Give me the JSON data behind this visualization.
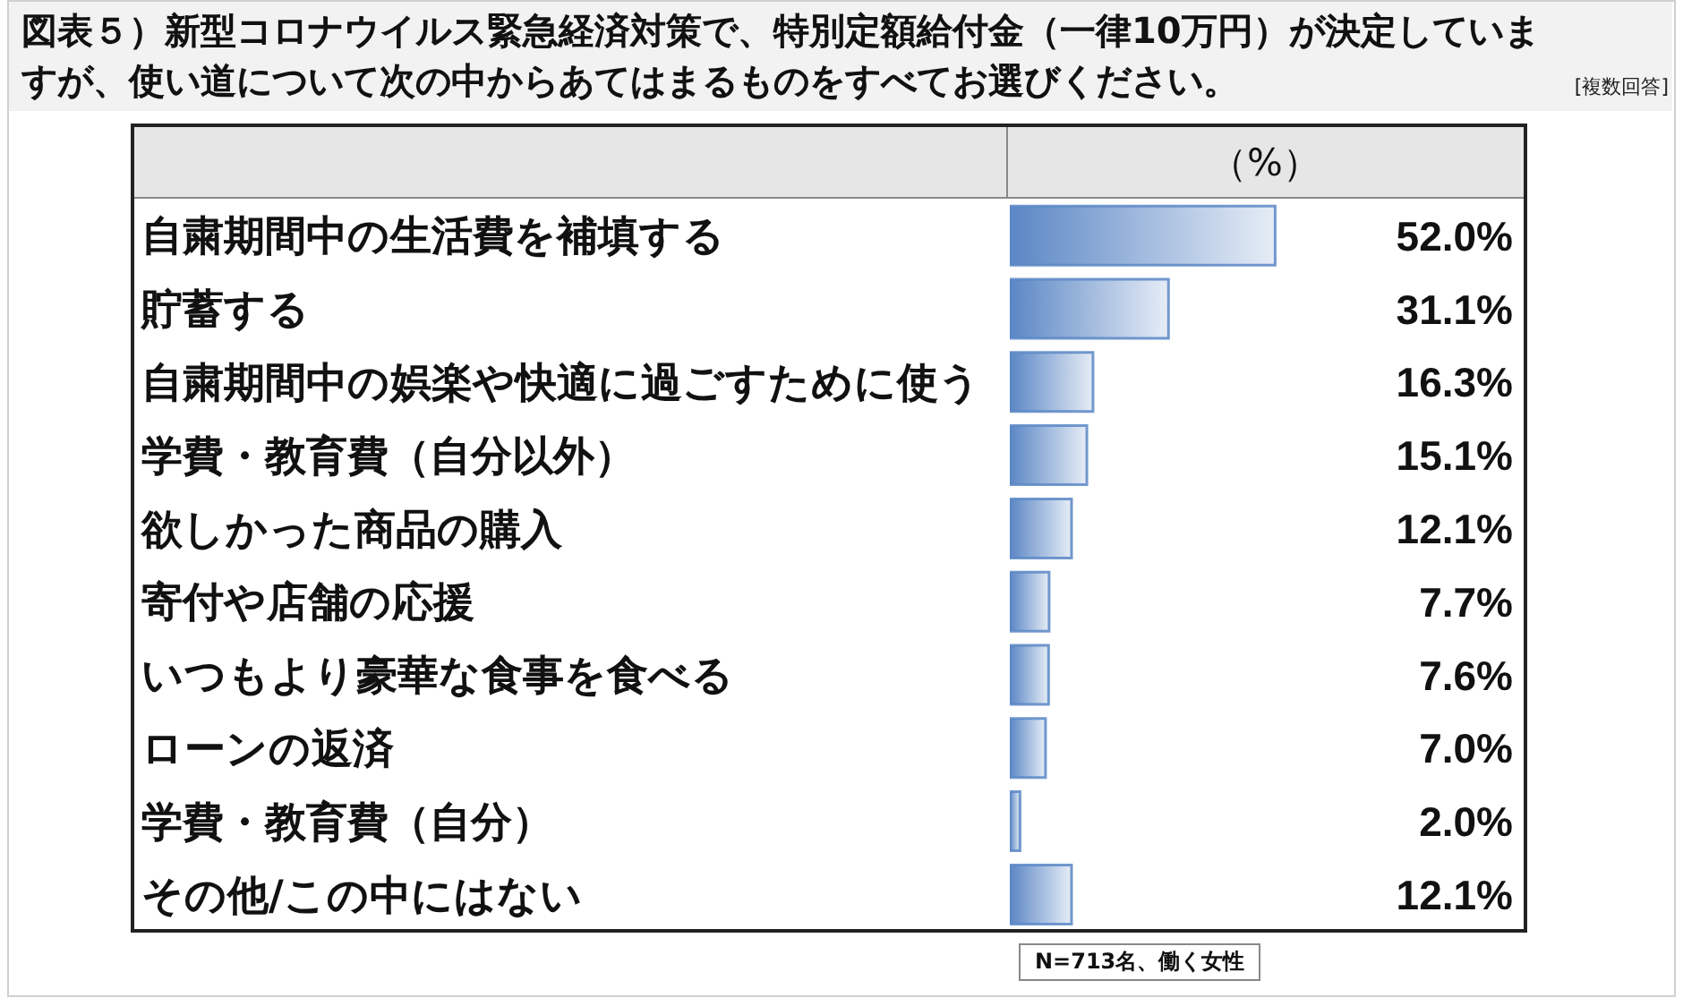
{
  "chart_data": {
    "type": "bar",
    "orientation": "horizontal",
    "title": "図表５）新型コロナウイルス緊急経済対策で、特別定額給付金（一律10万円）が決定していますが、使い道について次の中からあてはまるものをすべてお選びください。",
    "xlabel": "（%）",
    "annotations": [
      "[複数回答]",
      "N=713名、働く女性"
    ],
    "categories": [
      "自粛期間中の生活費を補填する",
      "貯蓄する",
      "自粛期間中の娯楽や快適に過ごすために使う",
      "学費・教育費（自分以外）",
      "欲しかった商品の購入",
      "寄付や店舗の応援",
      "いつもより豪華な食事を食べる",
      "ローンの返済",
      "学費・教育費（自分）",
      "その他/この中にはない"
    ],
    "values": [
      52.0,
      31.1,
      16.3,
      15.1,
      12.1,
      7.7,
      7.6,
      7.0,
      2.0,
      12.1
    ],
    "value_labels": [
      "52.0%",
      "31.1%",
      "16.3%",
      "15.1%",
      "12.1%",
      "7.7%",
      "7.6%",
      "7.0%",
      "2.0%",
      "12.1%"
    ],
    "color": "#5b87c5",
    "xlim": [
      0,
      100
    ],
    "tick_labels": "y"
  }
}
